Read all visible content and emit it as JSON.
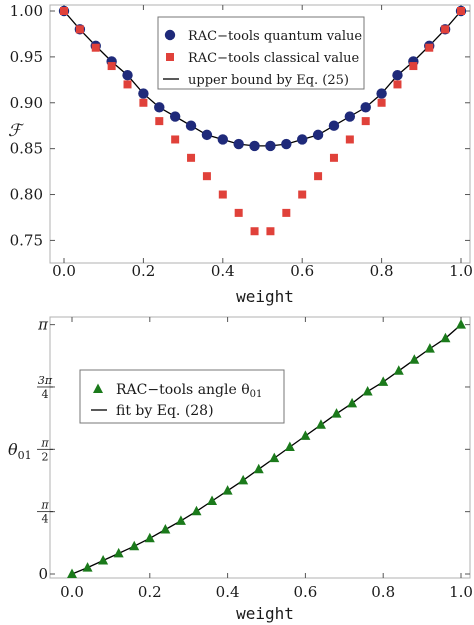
{
  "chart_data": [
    {
      "type": "scatter",
      "xlabel": "weight",
      "ylabel": "ℱ",
      "xlim": [
        0.0,
        1.0
      ],
      "ylim": [
        0.745,
        1.0
      ],
      "xticks": [
        0.0,
        0.2,
        0.4,
        0.6,
        0.8,
        1.0
      ],
      "xtick_labels": [
        "0.0",
        "0.2",
        "0.4",
        "0.6",
        "0.8",
        "1.0"
      ],
      "yticks": [
        0.75,
        0.8,
        0.85,
        0.9,
        0.95,
        1.0
      ],
      "ytick_labels": [
        "0.75",
        "0.80",
        "0.85",
        "0.90",
        "0.95",
        "1.00"
      ],
      "legend_position": "top-center",
      "series": [
        {
          "name": "RAC−tools quantum value",
          "marker": "circle",
          "color": "#1f2a7a",
          "x": [
            0.0,
            0.04,
            0.08,
            0.12,
            0.16,
            0.2,
            0.24,
            0.28,
            0.32,
            0.36,
            0.4,
            0.44,
            0.48,
            0.52,
            0.56,
            0.6,
            0.64,
            0.68,
            0.72,
            0.76,
            0.8,
            0.84,
            0.88,
            0.92,
            0.96,
            1.0
          ],
          "y": [
            1.0,
            0.98,
            0.962,
            0.945,
            0.93,
            0.91,
            0.895,
            0.885,
            0.875,
            0.865,
            0.86,
            0.855,
            0.853,
            0.853,
            0.855,
            0.86,
            0.865,
            0.875,
            0.885,
            0.895,
            0.91,
            0.93,
            0.945,
            0.962,
            0.98,
            1.0
          ]
        },
        {
          "name": "RAC−tools classical value",
          "marker": "square",
          "color": "#e0413a",
          "x": [
            0.0,
            0.04,
            0.08,
            0.12,
            0.16,
            0.2,
            0.24,
            0.28,
            0.32,
            0.36,
            0.4,
            0.44,
            0.48,
            0.52,
            0.56,
            0.6,
            0.64,
            0.68,
            0.72,
            0.76,
            0.8,
            0.84,
            0.88,
            0.92,
            0.96,
            1.0
          ],
          "y": [
            1.0,
            0.98,
            0.96,
            0.94,
            0.92,
            0.9,
            0.88,
            0.86,
            0.84,
            0.82,
            0.8,
            0.78,
            0.76,
            0.76,
            0.78,
            0.8,
            0.82,
            0.84,
            0.86,
            0.88,
            0.9,
            0.92,
            0.94,
            0.96,
            0.98,
            1.0
          ]
        },
        {
          "name": "upper bound by Eq. (25)",
          "marker": "line",
          "color": "#000000",
          "x": [
            0.0,
            0.04,
            0.08,
            0.12,
            0.16,
            0.2,
            0.24,
            0.28,
            0.32,
            0.36,
            0.4,
            0.44,
            0.48,
            0.52,
            0.56,
            0.6,
            0.64,
            0.68,
            0.72,
            0.76,
            0.8,
            0.84,
            0.88,
            0.92,
            0.96,
            1.0
          ],
          "y": [
            1.0,
            0.98,
            0.962,
            0.945,
            0.93,
            0.91,
            0.895,
            0.885,
            0.875,
            0.865,
            0.86,
            0.855,
            0.853,
            0.853,
            0.855,
            0.86,
            0.865,
            0.875,
            0.885,
            0.895,
            0.91,
            0.93,
            0.945,
            0.962,
            0.98,
            1.0
          ]
        }
      ]
    },
    {
      "type": "scatter",
      "xlabel": "weight",
      "ylabel": "θ01",
      "xlim": [
        0.0,
        1.0
      ],
      "ylim": [
        0.0,
        3.2
      ],
      "xticks": [
        0.0,
        0.2,
        0.4,
        0.6,
        0.8,
        1.0
      ],
      "xtick_labels": [
        "0.0",
        "0.2",
        "0.4",
        "0.6",
        "0.8",
        "1.0"
      ],
      "yticks": [
        0.0,
        0.785398,
        1.570796,
        2.356194,
        3.141593
      ],
      "ytick_labels": [
        "0",
        "π/4",
        "π/2",
        "3π/4",
        "π"
      ],
      "legend_position": "top-left",
      "series": [
        {
          "name": "RAC−tools angle θ01",
          "marker": "triangle",
          "color": "#1b7a1b",
          "x": [
            0.0,
            0.04,
            0.08,
            0.12,
            0.16,
            0.2,
            0.24,
            0.28,
            0.32,
            0.36,
            0.4,
            0.44,
            0.48,
            0.52,
            0.56,
            0.6,
            0.64,
            0.68,
            0.72,
            0.76,
            0.8,
            0.84,
            0.88,
            0.92,
            0.96,
            1.0
          ],
          "y": [
            0.0,
            0.08,
            0.17,
            0.26,
            0.35,
            0.45,
            0.56,
            0.67,
            0.79,
            0.92,
            1.05,
            1.18,
            1.32,
            1.46,
            1.6,
            1.74,
            1.88,
            2.02,
            2.15,
            2.3,
            2.42,
            2.56,
            2.7,
            2.84,
            2.97,
            3.141593
          ]
        },
        {
          "name": "fit by Eq. (28)",
          "marker": "line",
          "color": "#000000",
          "x": [
            0.0,
            0.04,
            0.08,
            0.12,
            0.16,
            0.2,
            0.24,
            0.28,
            0.32,
            0.36,
            0.4,
            0.44,
            0.48,
            0.52,
            0.56,
            0.6,
            0.64,
            0.68,
            0.72,
            0.76,
            0.8,
            0.84,
            0.88,
            0.92,
            0.96,
            1.0
          ],
          "y": [
            0.0,
            0.08,
            0.17,
            0.26,
            0.35,
            0.45,
            0.56,
            0.67,
            0.79,
            0.92,
            1.05,
            1.18,
            1.32,
            1.46,
            1.6,
            1.74,
            1.88,
            2.02,
            2.15,
            2.3,
            2.42,
            2.56,
            2.7,
            2.84,
            2.97,
            3.141593
          ]
        }
      ]
    }
  ]
}
